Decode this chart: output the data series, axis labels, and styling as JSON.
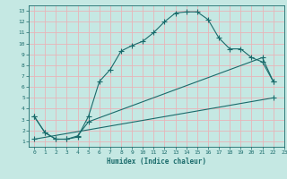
{
  "xlabel": "Humidex (Indice chaleur)",
  "xlim": [
    -0.5,
    23
  ],
  "ylim": [
    0.5,
    13.5
  ],
  "xticks": [
    0,
    1,
    2,
    3,
    4,
    5,
    6,
    7,
    8,
    9,
    10,
    11,
    12,
    13,
    14,
    15,
    16,
    17,
    18,
    19,
    20,
    21,
    22,
    23
  ],
  "yticks": [
    1,
    2,
    3,
    4,
    5,
    6,
    7,
    8,
    9,
    10,
    11,
    12,
    13
  ],
  "bg_color": "#c5e8e3",
  "grid_color": "#e8b4b8",
  "line_color": "#1a6b6b",
  "curve1_x": [
    0,
    1,
    2,
    3,
    4,
    5,
    6,
    7,
    8,
    9,
    10,
    11,
    12,
    13,
    14,
    15,
    16,
    17,
    18,
    19,
    20,
    21,
    22
  ],
  "curve1_y": [
    3.3,
    1.8,
    1.2,
    1.2,
    1.4,
    3.3,
    6.5,
    7.6,
    9.3,
    9.8,
    10.2,
    11.0,
    12.0,
    12.8,
    12.9,
    12.9,
    12.2,
    10.5,
    9.5,
    9.5,
    8.7,
    8.3,
    6.5
  ],
  "curve2_x": [
    0,
    1,
    2,
    3,
    4,
    5,
    21,
    22
  ],
  "curve2_y": [
    3.3,
    1.8,
    1.2,
    1.2,
    1.5,
    2.8,
    8.7,
    6.5
  ],
  "curve3_x": [
    0,
    22
  ],
  "curve3_y": [
    1.2,
    5.0
  ]
}
